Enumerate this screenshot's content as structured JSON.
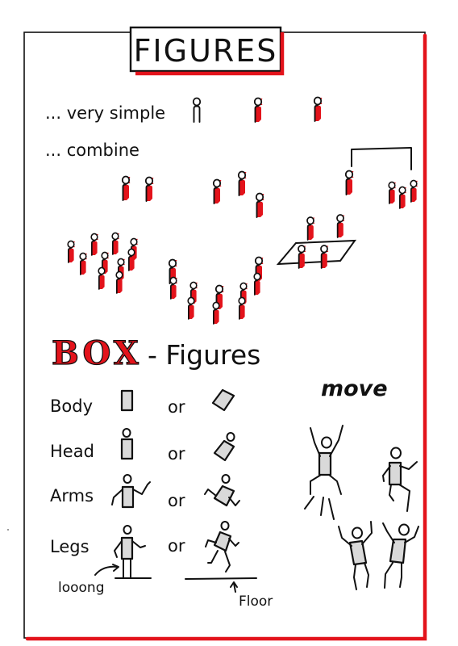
{
  "title": "FIGURES",
  "notes": {
    "very_simple": "... very simple",
    "combine": "... combine"
  },
  "box_section": {
    "word_box": "BOX",
    "word_figures": "- Figures",
    "rows": [
      {
        "label": "Body",
        "or": "or"
      },
      {
        "label": "Head",
        "or": "or"
      },
      {
        "label": "Arms",
        "or": "or"
      },
      {
        "label": "Legs",
        "or": "or"
      }
    ],
    "looong": "looong",
    "floor": "Floor"
  },
  "move": "move",
  "colors": {
    "accent_red": "#e3131b",
    "ink": "#111111",
    "box_grey": "#d9d9d9"
  }
}
